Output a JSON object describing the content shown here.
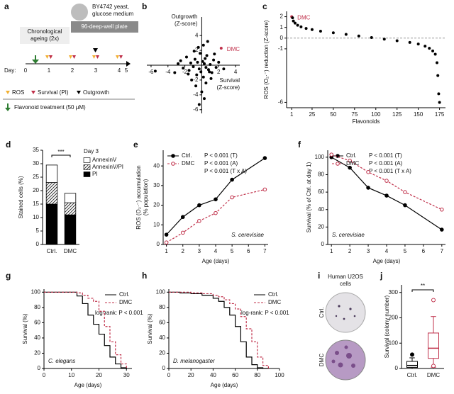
{
  "diagram": {
    "panel": "a",
    "medium": [
      "BY4742 yeast,",
      "glucose medium"
    ],
    "plate": "96-deep-well plate",
    "ageing": [
      "Chronological",
      "ageing (2x)"
    ],
    "day_label": "Day:",
    "days": [
      "0",
      "1",
      "2",
      "3",
      "4",
      "5"
    ],
    "legend": [
      "ROS",
      "Survival (PI)",
      "Outgrowth"
    ],
    "treatment": "Flavonoid treatment (50 μM)"
  },
  "images": {
    "panel": "i",
    "title": [
      "Human U2OS",
      "cells"
    ],
    "labels": [
      "Ctrl.",
      "DMC"
    ]
  },
  "chart_data": [
    {
      "type": "scatter",
      "panel": "b",
      "axes_at_zero": true,
      "x_label": [
        "Survival",
        "(Z-score)"
      ],
      "y_label": [
        "Outgrowth",
        "(Z-score)"
      ],
      "color": "#000000",
      "x": [
        -5.5,
        -3.2,
        -2.5,
        -2.2,
        -1.8,
        -1.5,
        -1.3,
        -1.0,
        -0.8,
        -0.6,
        -0.5,
        -0.3,
        -0.2,
        -0.1,
        0.1,
        0.2,
        0.3,
        0.4,
        0.5,
        0.6,
        0.8,
        1.0,
        1.2,
        1.4,
        1.7,
        2.0,
        2.6,
        -1.2,
        -0.7,
        -0.4,
        0.0,
        0.3,
        0.7,
        1.1,
        -2.8,
        -0.9,
        0.5,
        0.2,
        -0.3,
        1.5,
        -1.6,
        0.9,
        2.3
      ],
      "values": [
        -0.8,
        -1.0,
        0.6,
        -0.4,
        1.1,
        -0.7,
        0.3,
        -0.2,
        0.8,
        -1.3,
        0.4,
        -0.5,
        1.6,
        -0.9,
        0.5,
        -1.6,
        0.2,
        0.9,
        -0.3,
        1.3,
        -0.6,
        0.1,
        -1.0,
        0.7,
        -0.3,
        0.4,
        -0.5,
        -2.0,
        -2.8,
        2.4,
        -3.6,
        -4.5,
        3.2,
        -1.8,
        0.2,
        1.9,
        -2.4,
        2.7,
        -5.3,
        1.5,
        -1.2,
        -0.9,
        2.3
      ],
      "highlight": {
        "index": 42,
        "label": "DMC",
        "color": "#c0304a"
      },
      "xlim": [
        -6.5,
        4.5
      ],
      "xticks": [
        -6,
        -4,
        -2,
        2,
        4
      ],
      "ylim": [
        -6.5,
        6.5
      ],
      "yticks": [
        -6,
        -4,
        -2,
        2,
        4
      ]
    },
    {
      "type": "scatter",
      "panel": "c",
      "x_label": "Flavonoids",
      "y_label": [
        "ROS (O₂·⁻) reduction (Z-score)"
      ],
      "color": "#000000",
      "reference_line": 0,
      "x": [
        1,
        2,
        3,
        5,
        8,
        12,
        18,
        25,
        35,
        50,
        65,
        80,
        95,
        110,
        125,
        140,
        150,
        158,
        163,
        167,
        170,
        172,
        173,
        174,
        175
      ],
      "values": [
        2.0,
        1.9,
        1.6,
        1.4,
        1.2,
        1.05,
        0.9,
        0.8,
        0.65,
        0.5,
        0.35,
        0.2,
        0.05,
        -0.1,
        -0.25,
        -0.4,
        -0.55,
        -0.75,
        -0.95,
        -1.2,
        -1.5,
        -2.3,
        -3.5,
        -5.2,
        -6.0
      ],
      "highlight": {
        "index": 0,
        "label": "DMC",
        "color": "#c0304a"
      },
      "xlim": [
        -5,
        182
      ],
      "xticks": [
        1,
        25,
        50,
        75,
        100,
        125,
        150,
        175
      ],
      "ylim": [
        -6.5,
        2.5
      ],
      "yticks": [
        -6,
        -1,
        0,
        1,
        2
      ]
    },
    {
      "type": "bar",
      "panel": "d",
      "stacked": true,
      "y_label": [
        "Stained cells (%)"
      ],
      "categories": [
        "Ctrl.",
        "DMC"
      ],
      "series": [
        {
          "name": "PI",
          "color": "#000000",
          "values": [
            15,
            11
          ]
        },
        {
          "name": "AnnexinV/PI",
          "color": "hatch",
          "values": [
            8,
            4.5
          ]
        },
        {
          "name": "AnnexinV",
          "color": "#ffffff",
          "values": [
            6.5,
            3.5
          ]
        }
      ],
      "annotations": [
        "Day 3",
        "***"
      ],
      "ylim": [
        0,
        35
      ],
      "yticks": [
        0,
        5,
        10,
        15,
        20,
        25,
        30,
        35
      ]
    },
    {
      "type": "line",
      "panel": "e",
      "x_label": "Age (days)",
      "y_label": [
        "ROS (O₂·⁻) accumulation",
        "(% population)"
      ],
      "x": [
        1,
        2,
        3,
        4,
        5,
        7
      ],
      "series": [
        {
          "name": "Ctrl.",
          "color": "#000000",
          "marker": "filled",
          "values": [
            5,
            14,
            20,
            23,
            33,
            44
          ]
        },
        {
          "name": "DMC",
          "color": "#c0304a",
          "dash": true,
          "marker": "open",
          "values": [
            1,
            6,
            12,
            16,
            24,
            28
          ]
        }
      ],
      "annotations": [
        "P < 0.001 (T)",
        "P < 0.001 (A)",
        "P < 0.001 (T x A)"
      ],
      "species": "S. cerevisiae",
      "xlim": [
        0.8,
        7.2
      ],
      "xticks": [
        1,
        2,
        3,
        4,
        5,
        6,
        7
      ],
      "ylim": [
        0,
        48
      ],
      "yticks": [
        0,
        10,
        20,
        30,
        40
      ]
    },
    {
      "type": "line",
      "panel": "f",
      "x_label": "Age (days)",
      "y_label": [
        "Survival (% of Ctrl. at day 1)"
      ],
      "x": [
        1,
        2,
        3,
        4,
        5,
        7
      ],
      "series": [
        {
          "name": "Ctrl.",
          "color": "#000000",
          "marker": "filled",
          "values": [
            100,
            88,
            65,
            56,
            45,
            17
          ]
        },
        {
          "name": "DMC",
          "color": "#c0304a",
          "dash": true,
          "marker": "open",
          "values": [
            103,
            96,
            83,
            73,
            60,
            40
          ]
        }
      ],
      "annotations": [
        "P < 0.001 (T)",
        "P < 0.001 (A)",
        "P < 0.001 (T x A)"
      ],
      "species": "S. cerevisiae",
      "xlim": [
        0.8,
        7.2
      ],
      "xticks": [
        1,
        2,
        3,
        4,
        5,
        6,
        7
      ],
      "ylim": [
        0,
        108
      ],
      "yticks": [
        0,
        20,
        40,
        60,
        80,
        100
      ]
    },
    {
      "type": "line",
      "panel": "g",
      "step": true,
      "x_label": "Age (days)",
      "y_label": [
        "Survival (%)"
      ],
      "x": [
        0,
        10,
        12,
        14,
        16,
        18,
        20,
        22,
        24,
        26,
        28,
        30
      ],
      "series": [
        {
          "name": "Ctrl.",
          "color": "#000000",
          "values": [
            100,
            100,
            95,
            85,
            70,
            58,
            45,
            30,
            15,
            6,
            1,
            0
          ]
        },
        {
          "name": "DMC",
          "color": "#c0304a",
          "dash": true,
          "values": [
            100,
            100,
            99,
            96,
            92,
            88,
            75,
            55,
            35,
            18,
            6,
            0
          ]
        }
      ],
      "annotations": [
        "log-rank: P < 0.001"
      ],
      "species": "C. elegans",
      "xlim": [
        0,
        32
      ],
      "xticks": [
        0,
        10,
        20,
        30
      ],
      "ylim": [
        0,
        104
      ],
      "yticks": [
        0,
        20,
        40,
        60,
        80,
        100
      ]
    },
    {
      "type": "line",
      "panel": "h",
      "step": true,
      "x_label": "Age (days)",
      "y_label": [
        "Survival (%)"
      ],
      "x": [
        0,
        10,
        20,
        30,
        40,
        45,
        50,
        55,
        60,
        65,
        70,
        75,
        80,
        85,
        90
      ],
      "series": [
        {
          "name": "Ctrl.",
          "color": "#000000",
          "values": [
            100,
            99,
            98,
            96,
            92,
            88,
            80,
            70,
            55,
            35,
            15,
            5,
            1,
            0,
            0
          ]
        },
        {
          "name": "DMC",
          "color": "#c0304a",
          "dash": true,
          "values": [
            100,
            100,
            99,
            98,
            96,
            94,
            90,
            85,
            78,
            68,
            52,
            35,
            15,
            4,
            0
          ]
        }
      ],
      "annotations": [
        "log-rank: P < 0.001"
      ],
      "species": "D. melanogaster",
      "xlim": [
        0,
        100
      ],
      "xticks": [
        0,
        20,
        40,
        60,
        80,
        100
      ],
      "ylim": [
        0,
        104
      ],
      "yticks": [
        0,
        20,
        40,
        60,
        80,
        100
      ]
    },
    {
      "type": "box",
      "panel": "j",
      "y_label": [
        "Survival (colony number)"
      ],
      "categories": [
        "Ctrl.",
        "DMC"
      ],
      "colors": [
        "#000000",
        "#c0304a"
      ],
      "stats": [
        {
          "min": 0,
          "q1": 4,
          "median": 12,
          "q3": 28,
          "max": 42,
          "outliers": [
            55
          ]
        },
        {
          "min": 5,
          "q1": 40,
          "median": 80,
          "q3": 140,
          "max": 205,
          "outliers": [
            270,
            10
          ]
        }
      ],
      "annotations": [
        "**"
      ],
      "ylim": [
        0,
        330
      ],
      "yticks": [
        0,
        100,
        200,
        300
      ]
    }
  ]
}
